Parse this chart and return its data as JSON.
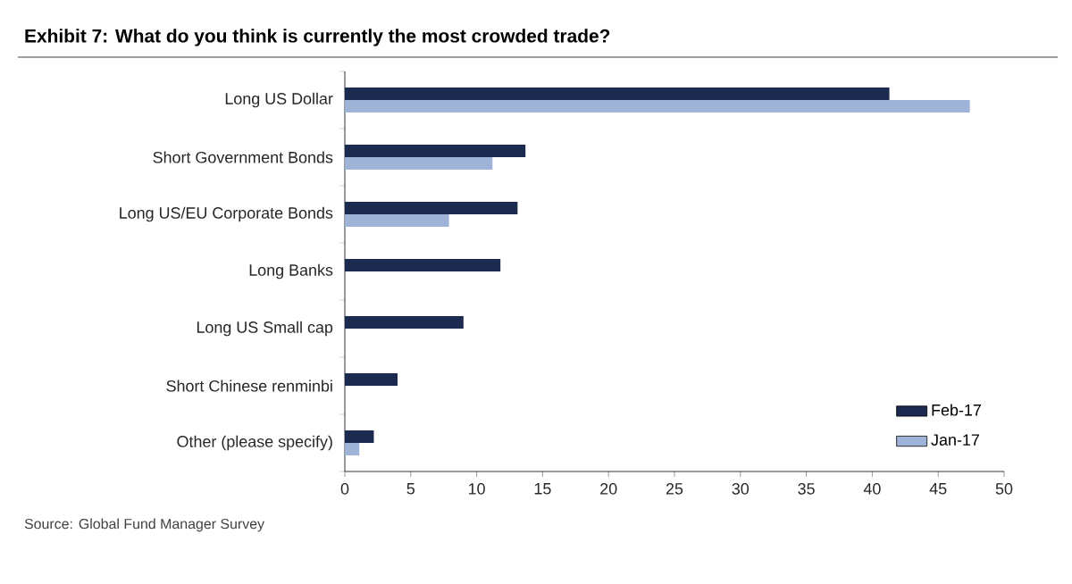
{
  "chart_data": {
    "type": "bar",
    "orientation": "horizontal",
    "title": "Exhibit 7: What do you think is currently the most crowded trade?",
    "annotations": [
      "Source: Global Fund Manager Survey"
    ],
    "categories": [
      "Long US Dollar",
      "Short Government Bonds",
      "Long US/EU Corporate Bonds",
      "Long Banks",
      "Long US Small cap",
      "Short Chinese renminbi",
      "Other (please specify)"
    ],
    "series": [
      {
        "name": "Feb-17",
        "color": "#1b2a4e",
        "values": [
          41.3,
          13.7,
          13.1,
          11.8,
          9.0,
          4.0,
          2.2
        ]
      },
      {
        "name": "Jan-17",
        "color": "#9fb3d8",
        "values": [
          47.4,
          11.2,
          7.9,
          null,
          null,
          null,
          1.1
        ]
      }
    ],
    "xlim": [
      0,
      50
    ],
    "xticks": [
      0,
      5,
      10,
      15,
      20,
      25,
      30,
      35,
      40,
      45,
      50
    ],
    "legend": "bottom right"
  }
}
